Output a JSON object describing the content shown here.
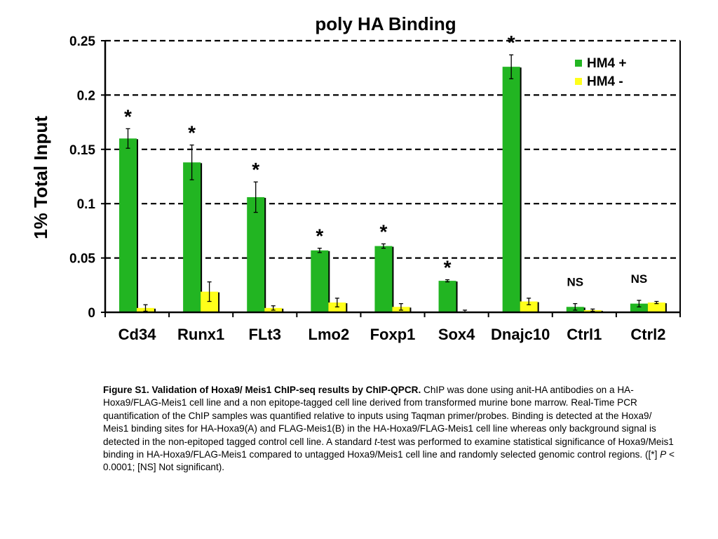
{
  "chart_data": {
    "type": "bar",
    "title": "poly HA Binding",
    "xlabel": "",
    "ylabel": "1% Total Input",
    "ylim": [
      0,
      0.25
    ],
    "yticks": [
      "0",
      "0.05",
      "0.1",
      "0.15",
      "0.2",
      "0.25"
    ],
    "ytick_values": [
      0,
      0.05,
      0.1,
      0.15,
      0.2,
      0.25
    ],
    "grid": "dashed horizontal",
    "legend_position": "top-right",
    "categories": [
      "Cd34",
      "Runx1",
      "FLt3",
      "Lmo2",
      "Foxp1",
      "Sox4",
      "Dnajc10",
      "Ctrl1",
      "Ctrl2"
    ],
    "series": [
      {
        "name": "HM4 +",
        "color": "#22b522",
        "values": [
          0.16,
          0.138,
          0.106,
          0.057,
          0.061,
          0.029,
          0.226,
          0.005,
          0.008
        ],
        "errors": [
          0.009,
          0.016,
          0.014,
          0.002,
          0.002,
          0.001,
          0.011,
          0.003,
          0.003
        ]
      },
      {
        "name": "HM4 -",
        "color": "#ffff1a",
        "values": [
          0.004,
          0.019,
          0.004,
          0.009,
          0.005,
          0.0,
          0.01,
          0.002,
          0.009
        ],
        "errors": [
          0.003,
          0.009,
          0.002,
          0.004,
          0.003,
          0.002,
          0.003,
          0.001,
          0.001
        ]
      }
    ],
    "annotations": [
      "*",
      "*",
      "*",
      "*",
      "*",
      "*",
      "*",
      "NS",
      "NS"
    ]
  },
  "caption": {
    "bold": "Figure S1. Validation of Hoxa9/ Meis1 ChIP-seq results by ChIP-QPCR.",
    "part1": "  ChIP was done using anit-HA antibodies on a HA-Hoxa9/FLAG-Meis1 cell line and a non epitope-tagged cell line derived from transformed murine bone marrow.  Real-Time PCR quantification of the ChIP samples was quantified relative to inputs using Taqman primer/probes.   Binding is detected at the Hoxa9/ Meis1 binding sites for HA-Hoxa9(A) and FLAG-Meis1(B) in the HA-Hoxa9/FLAG-Meis1 cell line whereas only background signal is detected in the non-epitoped tagged control cell line.  A standard ",
    "t_italic": "t",
    "part2": "-test was performed to examine statistical significance of Hoxa9/Meis1 binding in HA-Hoxa9/FLAG-Meis1 compared to untagged Hoxa9/Meis1 cell line and randomly selected genomic control regions. ([*] ",
    "p_italic": "P",
    "part3": " < 0.0001; [NS] Not significant)."
  }
}
